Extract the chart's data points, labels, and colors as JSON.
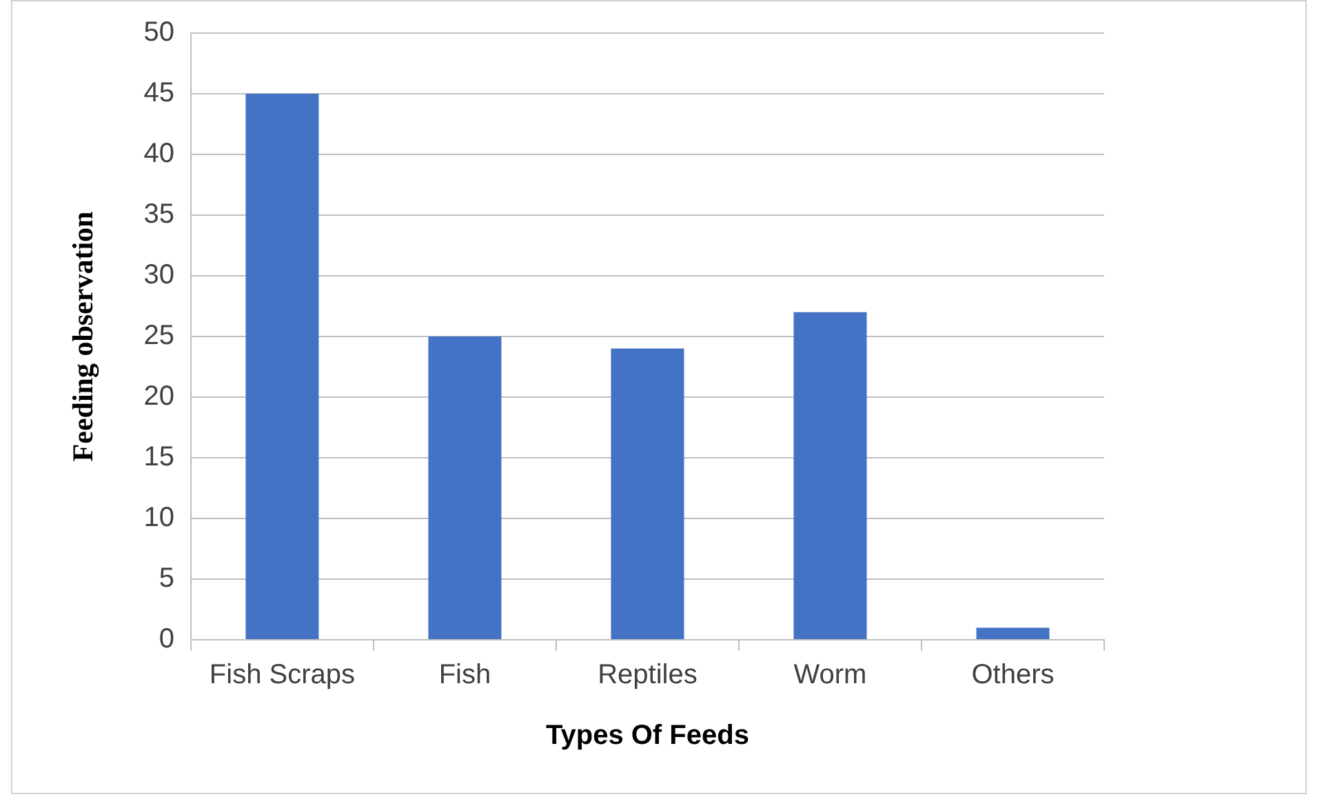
{
  "chart_data": {
    "type": "bar",
    "xlabel": "Types Of Feeds",
    "ylabel": "Feeding observation",
    "categories": [
      "Fish Scraps",
      "Fish",
      "Reptiles",
      "Worm",
      "Others"
    ],
    "values": [
      45,
      25,
      24,
      27,
      1
    ],
    "color": "#4472c4",
    "ylim": [
      0,
      50
    ],
    "yticks": [
      0,
      5,
      10,
      15,
      20,
      25,
      30,
      35,
      40,
      45,
      50
    ],
    "grid": "y",
    "legend": false
  }
}
